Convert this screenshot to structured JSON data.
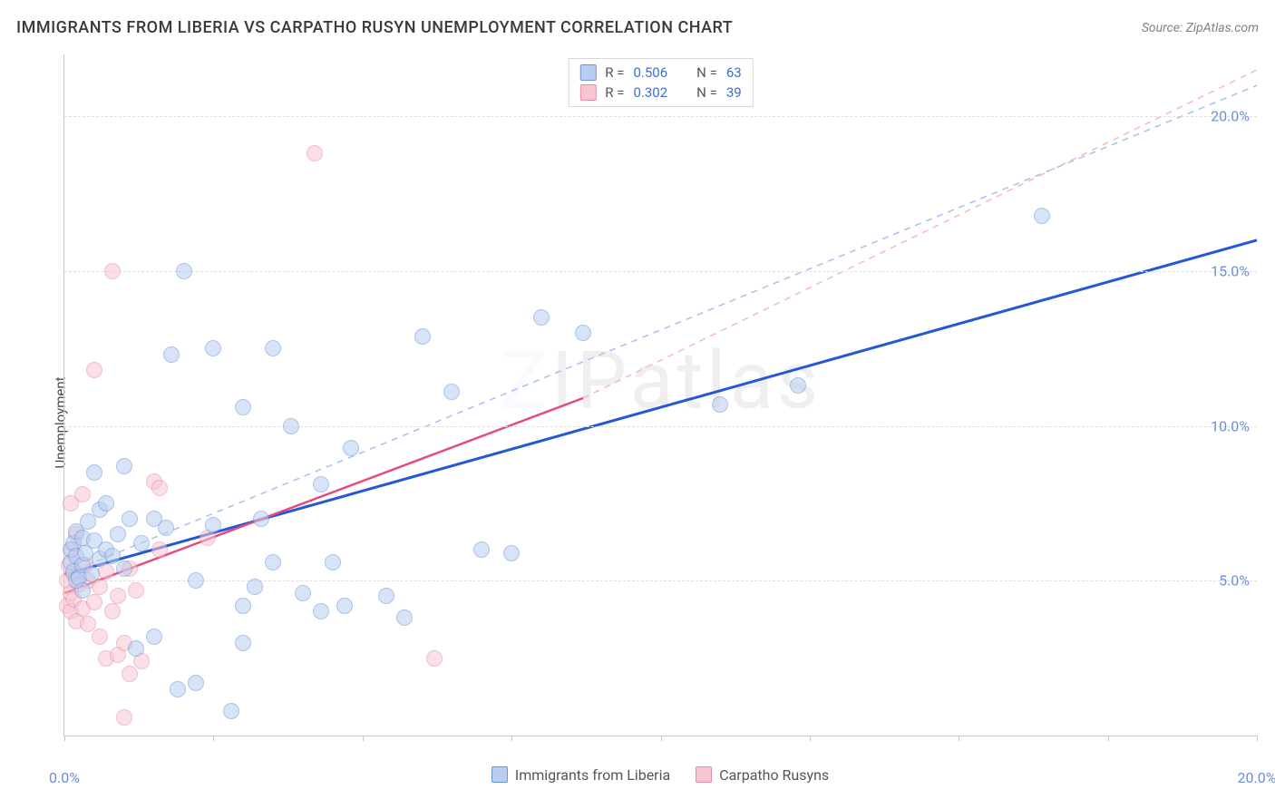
{
  "title": "IMMIGRANTS FROM LIBERIA VS CARPATHO RUSYN UNEMPLOYMENT CORRELATION CHART",
  "source": "Source: ZipAtlas.com",
  "ylabel": "Unemployment",
  "watermark": "ZIPatlas",
  "chart": {
    "type": "scatter",
    "xlim": [
      0,
      20
    ],
    "ylim": [
      0,
      22
    ],
    "x_ticks_minor": [
      0,
      2.5,
      5,
      7.5,
      10,
      12.5,
      15,
      17.5,
      20
    ],
    "x_tick_labels": [
      {
        "x": 0,
        "label": "0.0%"
      },
      {
        "x": 20,
        "label": "20.0%"
      }
    ],
    "y_gridlines": [
      5,
      10,
      15,
      20
    ],
    "y_tick_labels": [
      {
        "y": 5,
        "label": "5.0%"
      },
      {
        "y": 10,
        "label": "10.0%"
      },
      {
        "y": 15,
        "label": "15.0%"
      },
      {
        "y": 20,
        "label": "20.0%"
      }
    ],
    "background_color": "#ffffff",
    "grid_color": "#e0e0e0",
    "axis_color": "#c8c8c8",
    "marker_radius": 9,
    "marker_stroke_width": 1.2,
    "series": [
      {
        "name": "Immigrants from Liberia",
        "fill": "#b8cdef",
        "stroke": "#6a93d8",
        "fill_opacity": 0.55,
        "line_color": "#2458d6",
        "line_width": 3,
        "dash_color": "#a8c0ef",
        "R": "0.506",
        "N": "63",
        "regression_solid": {
          "x1": 0,
          "y1": 5.2,
          "x2": 20,
          "y2": 16.0
        },
        "regression_dash": {
          "x1": 0,
          "y1": 5.2,
          "x2": 20,
          "y2": 21.0
        },
        "points": [
          [
            0.1,
            5.6
          ],
          [
            0.1,
            6.0
          ],
          [
            0.15,
            5.3
          ],
          [
            0.15,
            6.2
          ],
          [
            0.2,
            5.0
          ],
          [
            0.2,
            5.8
          ],
          [
            0.2,
            6.6
          ],
          [
            0.25,
            5.1
          ],
          [
            0.3,
            4.7
          ],
          [
            0.3,
            5.5
          ],
          [
            0.3,
            6.4
          ],
          [
            0.35,
            5.9
          ],
          [
            0.4,
            6.9
          ],
          [
            0.45,
            5.2
          ],
          [
            0.5,
            6.3
          ],
          [
            0.5,
            8.5
          ],
          [
            0.6,
            5.7
          ],
          [
            0.6,
            7.3
          ],
          [
            0.7,
            6.0
          ],
          [
            0.7,
            7.5
          ],
          [
            0.8,
            5.8
          ],
          [
            0.9,
            6.5
          ],
          [
            1.0,
            8.7
          ],
          [
            1.0,
            5.4
          ],
          [
            1.1,
            7.0
          ],
          [
            1.2,
            2.8
          ],
          [
            1.3,
            6.2
          ],
          [
            1.5,
            3.2
          ],
          [
            1.5,
            7.0
          ],
          [
            1.7,
            6.7
          ],
          [
            1.8,
            12.3
          ],
          [
            2.0,
            15.0
          ],
          [
            2.2,
            1.7
          ],
          [
            2.2,
            5.0
          ],
          [
            2.5,
            6.8
          ],
          [
            2.5,
            12.5
          ],
          [
            2.8,
            0.8
          ],
          [
            3.0,
            10.6
          ],
          [
            3.0,
            4.2
          ],
          [
            3.2,
            4.8
          ],
          [
            3.3,
            7.0
          ],
          [
            3.5,
            12.5
          ],
          [
            3.5,
            5.6
          ],
          [
            3.8,
            10.0
          ],
          [
            4.0,
            4.6
          ],
          [
            4.3,
            4.0
          ],
          [
            4.3,
            8.1
          ],
          [
            4.5,
            5.6
          ],
          [
            4.7,
            4.2
          ],
          [
            4.8,
            9.3
          ],
          [
            5.4,
            4.5
          ],
          [
            5.7,
            3.8
          ],
          [
            6.0,
            12.9
          ],
          [
            6.5,
            11.1
          ],
          [
            7.0,
            6.0
          ],
          [
            7.5,
            5.9
          ],
          [
            8.0,
            13.5
          ],
          [
            8.7,
            13.0
          ],
          [
            11.0,
            10.7
          ],
          [
            12.3,
            11.3
          ],
          [
            16.4,
            16.8
          ],
          [
            1.9,
            1.5
          ],
          [
            3.0,
            3.0
          ]
        ]
      },
      {
        "name": "Carpatho Rusyns",
        "fill": "#f7c6d2",
        "stroke": "#e88aa4",
        "fill_opacity": 0.55,
        "line_color": "#e64a7a",
        "line_width": 2.5,
        "dash_color": "#f5b8c9",
        "R": "0.302",
        "N": "39",
        "regression_solid": {
          "x1": 0,
          "y1": 4.6,
          "x2": 8.7,
          "y2": 10.9
        },
        "regression_dash": {
          "x1": 8.7,
          "y1": 10.9,
          "x2": 20,
          "y2": 21.5
        },
        "points": [
          [
            0.05,
            4.2
          ],
          [
            0.05,
            5.0
          ],
          [
            0.08,
            5.5
          ],
          [
            0.1,
            4.0
          ],
          [
            0.1,
            4.6
          ],
          [
            0.1,
            7.5
          ],
          [
            0.12,
            6.0
          ],
          [
            0.15,
            4.4
          ],
          [
            0.15,
            5.2
          ],
          [
            0.2,
            3.7
          ],
          [
            0.2,
            6.5
          ],
          [
            0.25,
            4.9
          ],
          [
            0.3,
            4.1
          ],
          [
            0.3,
            7.8
          ],
          [
            0.35,
            5.5
          ],
          [
            0.4,
            3.6
          ],
          [
            0.4,
            5.0
          ],
          [
            0.5,
            4.3
          ],
          [
            0.5,
            11.8
          ],
          [
            0.6,
            3.2
          ],
          [
            0.6,
            4.8
          ],
          [
            0.7,
            2.5
          ],
          [
            0.7,
            5.3
          ],
          [
            0.8,
            4.0
          ],
          [
            0.8,
            15.0
          ],
          [
            0.9,
            2.6
          ],
          [
            0.9,
            4.5
          ],
          [
            1.0,
            3.0
          ],
          [
            1.0,
            0.6
          ],
          [
            1.1,
            2.0
          ],
          [
            1.1,
            5.4
          ],
          [
            1.2,
            4.7
          ],
          [
            1.3,
            2.4
          ],
          [
            1.5,
            8.2
          ],
          [
            1.6,
            6.0
          ],
          [
            1.6,
            8.0
          ],
          [
            2.4,
            6.4
          ],
          [
            4.2,
            18.8
          ],
          [
            6.2,
            2.5
          ]
        ]
      }
    ]
  },
  "legend_bottom": [
    {
      "label": "Immigrants from Liberia",
      "fill": "#b8cdef",
      "stroke": "#6a93d8"
    },
    {
      "label": "Carpatho Rusyns",
      "fill": "#f7c6d2",
      "stroke": "#e88aa4"
    }
  ],
  "legend_top_labels": {
    "r_prefix": "R =",
    "n_prefix": "N ="
  }
}
